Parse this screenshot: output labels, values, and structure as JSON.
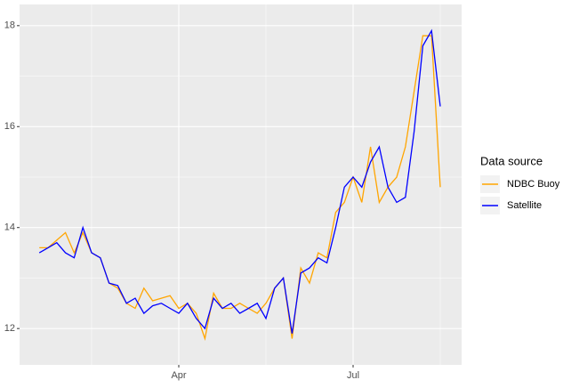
{
  "chart_data": {
    "type": "line",
    "categories": [
      null,
      null,
      null,
      null,
      null,
      null,
      null,
      null,
      null,
      null,
      null,
      null,
      null,
      null,
      null,
      null,
      "Apr",
      null,
      null,
      null,
      null,
      null,
      null,
      null,
      null,
      null,
      null,
      null,
      null,
      null,
      null,
      null,
      null,
      null,
      null,
      null,
      "Jul",
      null,
      null,
      null,
      null,
      null,
      null,
      null,
      null,
      null,
      null
    ],
    "series": [
      {
        "name": "NDBC Buoy",
        "color": "#FFA500",
        "values": [
          13.6,
          13.6,
          13.75,
          13.9,
          13.5,
          13.9,
          13.5,
          13.4,
          12.9,
          12.8,
          12.5,
          12.4,
          12.8,
          12.55,
          12.6,
          12.65,
          12.4,
          12.5,
          12.3,
          11.8,
          12.7,
          12.4,
          12.4,
          12.5,
          12.4,
          12.3,
          12.5,
          12.8,
          13.0,
          11.8,
          13.2,
          12.9,
          13.5,
          13.4,
          14.3,
          14.5,
          15.0,
          14.5,
          15.6,
          14.5,
          14.8,
          15.0,
          15.6,
          16.7,
          17.8,
          17.8,
          14.8
        ]
      },
      {
        "name": "Satellite",
        "color": "#0000FF",
        "values": [
          13.5,
          13.6,
          13.7,
          13.5,
          13.4,
          14.0,
          13.5,
          13.4,
          12.9,
          12.85,
          12.5,
          12.6,
          12.3,
          12.45,
          12.5,
          12.4,
          12.3,
          12.5,
          12.2,
          12.0,
          12.6,
          12.4,
          12.5,
          12.3,
          12.4,
          12.5,
          12.2,
          12.8,
          13.0,
          11.9,
          13.1,
          13.2,
          13.4,
          13.3,
          14.0,
          14.8,
          15.0,
          14.8,
          15.3,
          15.6,
          14.8,
          14.5,
          14.6,
          15.9,
          17.6,
          17.9,
          16.4
        ]
      }
    ],
    "ylim": [
      11.28,
      18.42
    ],
    "yticks": [
      12,
      14,
      16,
      18
    ],
    "grid": true,
    "legend_title": "Data source",
    "legend_position": "right"
  }
}
